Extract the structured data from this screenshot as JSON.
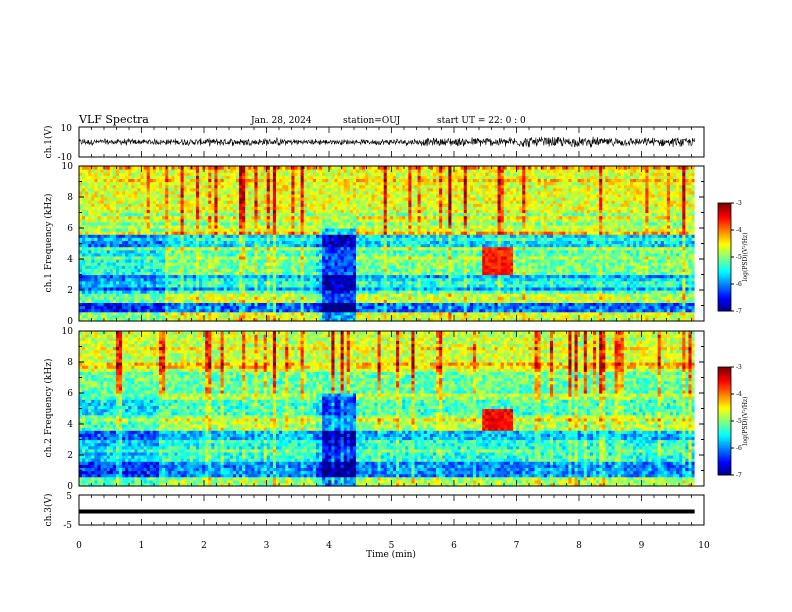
{
  "header": {
    "title": "VLF Spectra",
    "date": "Jan. 28, 2024",
    "station": "station=OUJ",
    "start": "start  UT  =   22: 0  : 0"
  },
  "chart_data": [
    {
      "id": "ch1-waveform",
      "type": "line",
      "ylabel": "ch.1(V)",
      "yticks": [
        "10",
        "-10"
      ],
      "ylim": [
        -10,
        10
      ],
      "xlim": [
        0,
        10
      ],
      "x_extent": [
        0,
        9.85
      ],
      "description_of_signal": "noise",
      "amplitude_envelope": [
        {
          "x": 0.0,
          "amp": 2.5
        },
        {
          "x": 1.5,
          "amp": 2.5
        },
        {
          "x": 3.0,
          "amp": 3.2
        },
        {
          "x": 3.9,
          "amp": 2.2
        },
        {
          "x": 4.5,
          "amp": 2.0
        },
        {
          "x": 6.0,
          "amp": 3.5
        },
        {
          "x": 7.5,
          "amp": 4.2
        },
        {
          "x": 9.0,
          "amp": 3.2
        },
        {
          "x": 9.85,
          "amp": 3.5
        }
      ]
    },
    {
      "id": "ch1-spectrogram",
      "type": "heatmap",
      "ylabel": "ch.1\nFrequency (kHz)",
      "yticks": [
        "0",
        "2",
        "4",
        "6",
        "8",
        "10"
      ],
      "ylim": [
        0,
        10
      ],
      "xlim": [
        0,
        10
      ],
      "x_extent": [
        0,
        9.85
      ],
      "colorbar": {
        "label": "log(PSD)(V²/Hz)",
        "ticks": [
          "-3",
          "-4",
          "-5",
          "-6",
          "-7"
        ],
        "range": [
          -7,
          -3
        ]
      },
      "bands": [
        {
          "f0": 0.0,
          "f1": 0.6,
          "level": -5.0
        },
        {
          "f0": 0.6,
          "f1": 1.2,
          "level": -6.4
        },
        {
          "f0": 1.2,
          "f1": 2.0,
          "level": -5.6
        },
        {
          "f0": 2.0,
          "f1": 3.0,
          "level": -6.2
        },
        {
          "f0": 3.0,
          "f1": 4.0,
          "level": -5.4
        },
        {
          "f0": 4.0,
          "f1": 4.8,
          "level": -5.5
        },
        {
          "f0": 4.8,
          "f1": 5.6,
          "level": -6.0
        },
        {
          "f0": 5.6,
          "f1": 7.0,
          "level": -5.0
        },
        {
          "f0": 7.0,
          "f1": 10.0,
          "level": -4.6
        }
      ],
      "quiet_intervals": [
        [
          3.85,
          4.4
        ]
      ],
      "active_intervals": [
        [
          1.35,
          3.75
        ],
        [
          4.4,
          9.85
        ]
      ],
      "hotspot": {
        "t0": 6.45,
        "t1": 6.9,
        "f0": 3.0,
        "f1": 4.6,
        "level": -3.6
      }
    },
    {
      "id": "ch2-spectrogram",
      "type": "heatmap",
      "ylabel": "ch.2\nFrequency (kHz)",
      "yticks": [
        "0",
        "2",
        "4",
        "6",
        "8",
        "10"
      ],
      "ylim": [
        0,
        10
      ],
      "xlim": [
        0,
        10
      ],
      "x_extent": [
        0,
        9.85
      ],
      "colorbar": {
        "label": "log(PSD)(V²/Hz)",
        "ticks": [
          "-3",
          "-4",
          "-5",
          "-6",
          "-7"
        ],
        "range": [
          -7,
          -3
        ]
      },
      "bands": [
        {
          "f0": 0.0,
          "f1": 0.6,
          "level": -5.2
        },
        {
          "f0": 0.6,
          "f1": 1.5,
          "level": -6.3
        },
        {
          "f0": 1.5,
          "f1": 2.5,
          "level": -5.7
        },
        {
          "f0": 2.5,
          "f1": 3.6,
          "level": -6.1
        },
        {
          "f0": 3.6,
          "f1": 4.6,
          "level": -5.2
        },
        {
          "f0": 4.6,
          "f1": 5.8,
          "level": -5.6
        },
        {
          "f0": 5.8,
          "f1": 7.4,
          "level": -5.1
        },
        {
          "f0": 7.4,
          "f1": 10.0,
          "level": -4.7
        }
      ],
      "quiet_intervals": [
        [
          3.85,
          4.4
        ]
      ],
      "active_intervals": [
        [
          1.35,
          3.75
        ],
        [
          4.4,
          9.85
        ]
      ],
      "hotspot": {
        "t0": 6.45,
        "t1": 6.9,
        "f0": 3.6,
        "f1": 4.8,
        "level": -3.5
      }
    },
    {
      "id": "ch3-waveform",
      "type": "line",
      "ylabel": "ch.3(V)",
      "yticks": [
        "5",
        "-5"
      ],
      "ylim": [
        -5,
        5
      ],
      "xlim": [
        0,
        10
      ],
      "x_extent": [
        0,
        9.85
      ],
      "y_constant": -0.5,
      "xlabel": "Time  (min)",
      "xticks": [
        "0",
        "1",
        "2",
        "3",
        "4",
        "5",
        "6",
        "7",
        "8",
        "9",
        "10"
      ]
    }
  ]
}
